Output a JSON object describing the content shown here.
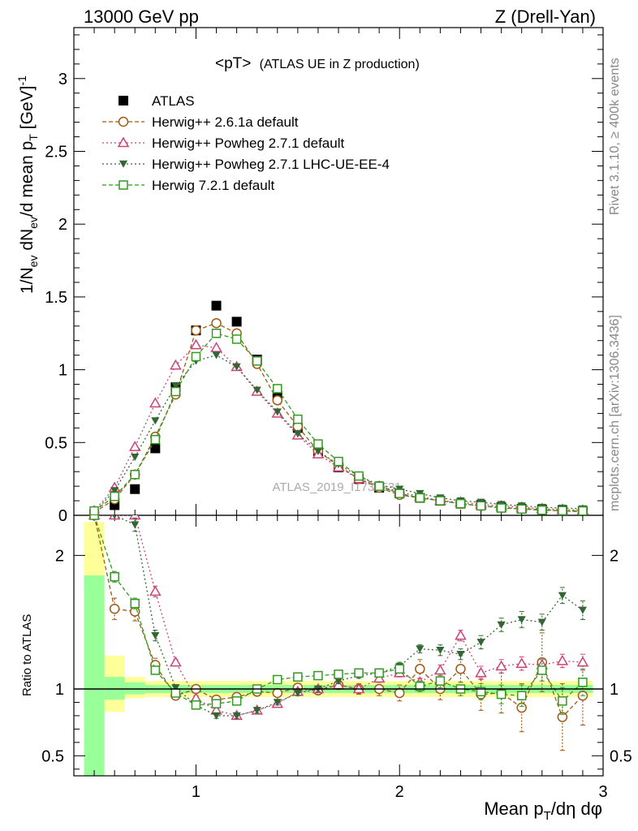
{
  "header": {
    "left": "13000 GeV pp",
    "right": "Z (Drell-Yan)"
  },
  "side": {
    "rivet": "Rivet 3.1.10, ≥ 400k events",
    "mcplots": "mcplots.cern.ch [arXiv:1306.3436]"
  },
  "watermark": "ATLAS_2019_I1736531",
  "chart_data": [
    {
      "type": "line",
      "title": "<pT> (ATLAS UE in Z production)",
      "title_main": "<pT>",
      "title_sub": "(ATLAS UE in Z production)",
      "ylabel": "1/N_ev dN_ev/d mean p_T [GeV]^-1",
      "ylabel_parts": {
        "a": "1/N",
        "a_sub": "ev",
        "b": " dN",
        "b_sub": "ev",
        "c": "/d mean p",
        "c_sub": "T",
        "d": " [GeV]",
        "d_sup": "-1"
      },
      "xlim": [
        0.4,
        3.0
      ],
      "ylim": [
        0,
        3.35
      ],
      "yticks": [
        0,
        0.5,
        1,
        1.5,
        2,
        2.5,
        3
      ],
      "ytick_labels": [
        "0",
        "0.5",
        "1",
        "1.5",
        "2",
        "2.5",
        "3"
      ],
      "x": [
        0.5,
        0.6,
        0.7,
        0.8,
        0.9,
        1.0,
        1.1,
        1.2,
        1.3,
        1.4,
        1.5,
        1.6,
        1.7,
        1.8,
        1.9,
        2.0,
        2.1,
        2.2,
        2.3,
        2.4,
        2.5,
        2.6,
        2.7,
        2.8,
        2.9
      ],
      "series": [
        {
          "name": "ATLAS",
          "key": "atlas",
          "color": "#000000",
          "marker": "square-filled",
          "values": [
            0.005,
            0.07,
            0.18,
            0.46,
            0.88,
            1.27,
            1.44,
            1.33,
            1.07,
            0.82,
            0.6,
            0.44,
            0.33,
            0.25,
            0.19,
            0.15,
            0.12,
            0.1,
            0.08,
            0.07,
            0.055,
            0.045,
            0.04,
            0.035,
            0.03
          ]
        },
        {
          "name": "Herwig++ 2.6.1a default",
          "key": "h261",
          "color": "#a05a14",
          "marker": "circle-open",
          "dash": "5,3",
          "values": [
            0.02,
            0.11,
            0.28,
            0.54,
            0.83,
            1.27,
            1.32,
            1.25,
            1.04,
            0.79,
            0.61,
            0.44,
            0.34,
            0.25,
            0.19,
            0.14,
            0.12,
            0.1,
            0.08,
            0.065,
            0.055,
            0.045,
            0.04,
            0.03,
            0.025
          ]
        },
        {
          "name": "Herwig++ Powheg 2.7.1 default",
          "key": "pow",
          "color": "#cc4477",
          "marker": "triangle-open",
          "dash": "2,3",
          "values": [
            0.03,
            0.19,
            0.47,
            0.77,
            1.03,
            1.17,
            1.15,
            1.02,
            0.85,
            0.7,
            0.55,
            0.42,
            0.33,
            0.25,
            0.2,
            0.16,
            0.13,
            0.1,
            0.09,
            0.075,
            0.065,
            0.055,
            0.045,
            0.04,
            0.035
          ]
        },
        {
          "name": "Herwig++ Powheg 2.7.1 LHC-UE-EE-4",
          "key": "uee4",
          "color": "#336633",
          "marker": "triangle-down-filled",
          "dash": "2,3",
          "values": [
            0.02,
            0.17,
            0.4,
            0.65,
            0.89,
            1.06,
            1.1,
            1.02,
            0.86,
            0.71,
            0.56,
            0.44,
            0.35,
            0.27,
            0.21,
            0.18,
            0.15,
            0.12,
            0.1,
            0.09,
            0.075,
            0.065,
            0.055,
            0.05,
            0.045
          ]
        },
        {
          "name": "Herwig 7.2.1 default",
          "key": "h721",
          "color": "#339922",
          "marker": "square-open",
          "dash": "5,3",
          "values": [
            0.03,
            0.13,
            0.28,
            0.52,
            0.85,
            1.09,
            1.25,
            1.21,
            1.06,
            0.87,
            0.66,
            0.49,
            0.37,
            0.27,
            0.2,
            0.15,
            0.12,
            0.1,
            0.08,
            0.065,
            0.05,
            0.043,
            0.035,
            0.032,
            0.03
          ]
        }
      ]
    },
    {
      "type": "line",
      "title": "Ratio to ATLAS",
      "ylabel": "Ratio to ATLAS",
      "xlabel": "Mean p_T/dη dφ",
      "xlabel_parts": {
        "a": "Mean p",
        "a_sub": "T",
        "b": "/dη dφ"
      },
      "xlim": [
        0.4,
        3.0
      ],
      "ylim": [
        0.35,
        2.3
      ],
      "yticks": [
        0.5,
        1,
        2
      ],
      "ytick_labels": [
        "0.5",
        "1",
        "2"
      ],
      "xticks": [
        1,
        2,
        3
      ],
      "xtick_labels": [
        "1",
        "2",
        "3"
      ],
      "x": [
        0.5,
        0.6,
        0.7,
        0.8,
        0.9,
        1.0,
        1.1,
        1.2,
        1.3,
        1.4,
        1.5,
        1.6,
        1.7,
        1.8,
        1.9,
        2.0,
        2.1,
        2.2,
        2.3,
        2.4,
        2.5,
        2.6,
        2.7,
        2.8,
        2.9
      ],
      "bands": {
        "yellow": [
          [
            0.45,
            0.55,
            0.78,
            2.25
          ],
          [
            0.55,
            0.65,
            0.83,
            1.25
          ],
          [
            0.65,
            0.75,
            0.93,
            1.09
          ],
          [
            0.75,
            2.95,
            0.94,
            1.06
          ]
        ],
        "green": [
          [
            0.45,
            0.55,
            0.35,
            1.85
          ],
          [
            0.55,
            0.65,
            0.92,
            1.09
          ],
          [
            0.65,
            0.75,
            0.96,
            1.05
          ],
          [
            0.75,
            2.95,
            0.97,
            1.03
          ]
        ]
      },
      "series": [
        {
          "key": "h261",
          "values": [
            2.3,
            1.6,
            1.58,
            1.18,
            0.95,
            1.0,
            0.92,
            0.94,
            0.98,
            0.97,
            1.01,
            0.99,
            1.03,
            1.0,
            1.0,
            0.97,
            1.15,
            1.0,
            1.15,
            0.96,
            0.97,
            0.86,
            1.2,
            0.79,
            0.95
          ],
          "err": [
            0.1,
            0.08,
            0.07,
            0.05,
            0.02,
            0.02,
            0.02,
            0.02,
            0.02,
            0.02,
            0.02,
            0.02,
            0.03,
            0.04,
            0.05,
            0.06,
            0.07,
            0.08,
            0.1,
            0.12,
            0.15,
            0.18,
            0.22,
            0.25,
            0.22
          ]
        },
        {
          "key": "pow",
          "values": [
            2.3,
            2.3,
            2.3,
            1.73,
            1.2,
            0.93,
            0.84,
            0.8,
            0.84,
            0.89,
            0.98,
            1.0,
            1.03,
            1.0,
            1.08,
            1.12,
            1.05,
            1.14,
            1.4,
            1.12,
            1.17,
            1.19,
            1.18,
            1.21,
            1.2
          ],
          "err": [
            0.05,
            0.05,
            0.05,
            0.04,
            0.02,
            0.02,
            0.02,
            0.02,
            0.02,
            0.02,
            0.02,
            0.02,
            0.02,
            0.02,
            0.03,
            0.03,
            0.03,
            0.04,
            0.04,
            0.05,
            0.05,
            0.05,
            0.05,
            0.05,
            0.06
          ]
        },
        {
          "key": "uee4",
          "values": [
            2.3,
            2.3,
            2.23,
            1.4,
            1.01,
            0.88,
            0.8,
            0.8,
            0.84,
            0.9,
            0.97,
            1.0,
            1.06,
            1.1,
            1.12,
            1.17,
            1.3,
            1.29,
            1.26,
            1.35,
            1.48,
            1.52,
            1.5,
            1.7,
            1.59
          ],
          "err": [
            0.05,
            0.05,
            0.05,
            0.04,
            0.02,
            0.02,
            0.02,
            0.02,
            0.02,
            0.02,
            0.02,
            0.02,
            0.02,
            0.02,
            0.03,
            0.03,
            0.03,
            0.04,
            0.04,
            0.05,
            0.05,
            0.06,
            0.06,
            0.06,
            0.07
          ]
        },
        {
          "key": "h721",
          "values": [
            2.3,
            1.84,
            1.64,
            1.14,
            0.97,
            0.88,
            0.89,
            0.91,
            1.0,
            1.07,
            1.09,
            1.1,
            1.11,
            1.12,
            1.12,
            1.15,
            1.02,
            1.06,
            1.0,
            0.98,
            0.96,
            0.95,
            1.14,
            0.91,
            1.05
          ],
          "err": [
            0.05,
            0.04,
            0.04,
            0.03,
            0.02,
            0.02,
            0.02,
            0.02,
            0.02,
            0.02,
            0.02,
            0.02,
            0.02,
            0.02,
            0.03,
            0.03,
            0.04,
            0.05,
            0.05,
            0.06,
            0.07,
            0.08,
            0.08,
            0.1,
            0.1
          ]
        }
      ]
    }
  ]
}
